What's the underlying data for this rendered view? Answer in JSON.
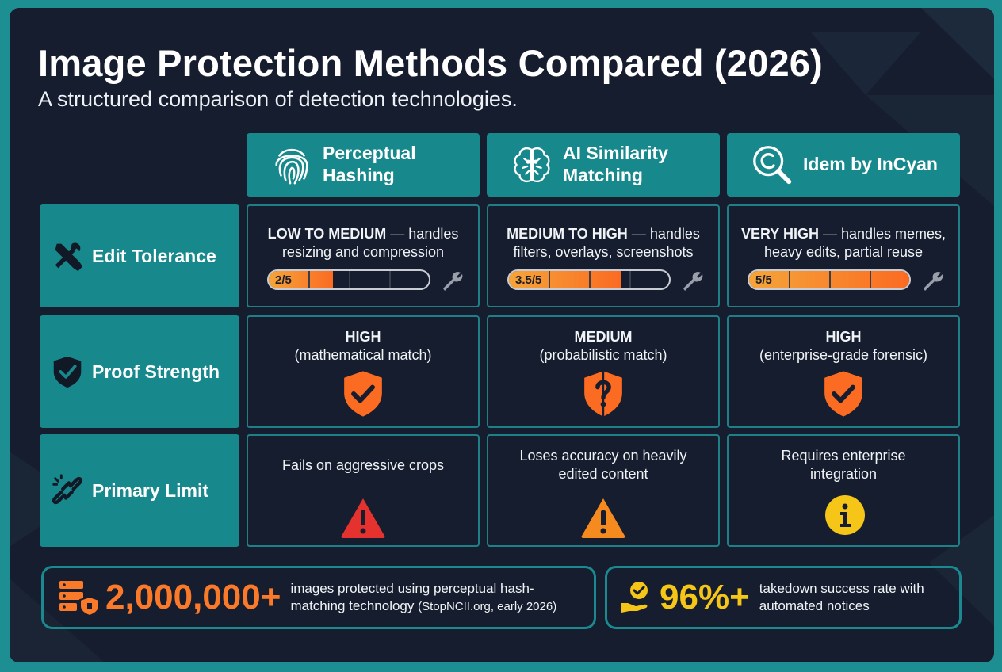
{
  "header": {
    "title": "Image Protection Methods Compared (2026)",
    "subtitle": "A structured comparison of detection technologies."
  },
  "columns": [
    {
      "label": "Perceptual Hashing",
      "icon": "fingerprint-icon"
    },
    {
      "label": "AI Similarity Matching",
      "icon": "brain-icon"
    },
    {
      "label": "Idem by InCyan",
      "icon": "magnifier-icon"
    }
  ],
  "rows": [
    {
      "label": "Edit Tolerance",
      "icon": "tools-icon"
    },
    {
      "label": "Proof Strength",
      "icon": "shield-check-icon"
    },
    {
      "label": "Primary Limit",
      "icon": "broken-link-icon"
    }
  ],
  "edit_tolerance": [
    {
      "level": "LOW TO MEDIUM",
      "desc": "— handles",
      "desc2": "resizing and compression",
      "score_label": "2/5",
      "score": 2
    },
    {
      "level": "MEDIUM TO HIGH",
      "desc": "— handles",
      "desc2": "filters, overlays, screenshots",
      "score_label": "3.5/5",
      "score": 3.5
    },
    {
      "level": "VERY HIGH",
      "desc": "— handles memes,",
      "desc2": "heavy edits, partial reuse",
      "score_label": "5/5",
      "score": 5
    }
  ],
  "proof_strength": [
    {
      "level": "HIGH",
      "desc": "(mathematical match)",
      "icon": "shield-check-icon"
    },
    {
      "level": "MEDIUM",
      "desc": "(probabilistic match)",
      "icon": "shield-question-icon"
    },
    {
      "level": "HIGH",
      "desc": "(enterprise-grade forensic)",
      "icon": "shield-check-icon"
    }
  ],
  "primary_limit": [
    {
      "line1": "Fails on aggressive crops",
      "line2": "",
      "icon": "warning-red-icon"
    },
    {
      "line1": "Loses accuracy on heavily",
      "line2": "edited content",
      "icon": "warning-orange-icon"
    },
    {
      "line1": "Requires enterprise",
      "line2": "integration",
      "icon": "info-yellow-icon"
    }
  ],
  "stats": [
    {
      "value": "2,000,000+",
      "line1": "images protected using perceptual hash-",
      "line2": "matching technology",
      "source": "(StopNCII.org, early 2026)",
      "color": "#fb7a2a",
      "icon": "server-shield-icon"
    },
    {
      "value": "96%+",
      "line1": "takedown success rate with",
      "line2": "automated notices",
      "color": "#f5c518",
      "icon": "hand-check-icon"
    }
  ],
  "colors": {
    "teal": "#17898d",
    "bg": "#161d2e",
    "orange": "#fb6b22",
    "yellow": "#f5c518",
    "red": "#e5322f"
  }
}
